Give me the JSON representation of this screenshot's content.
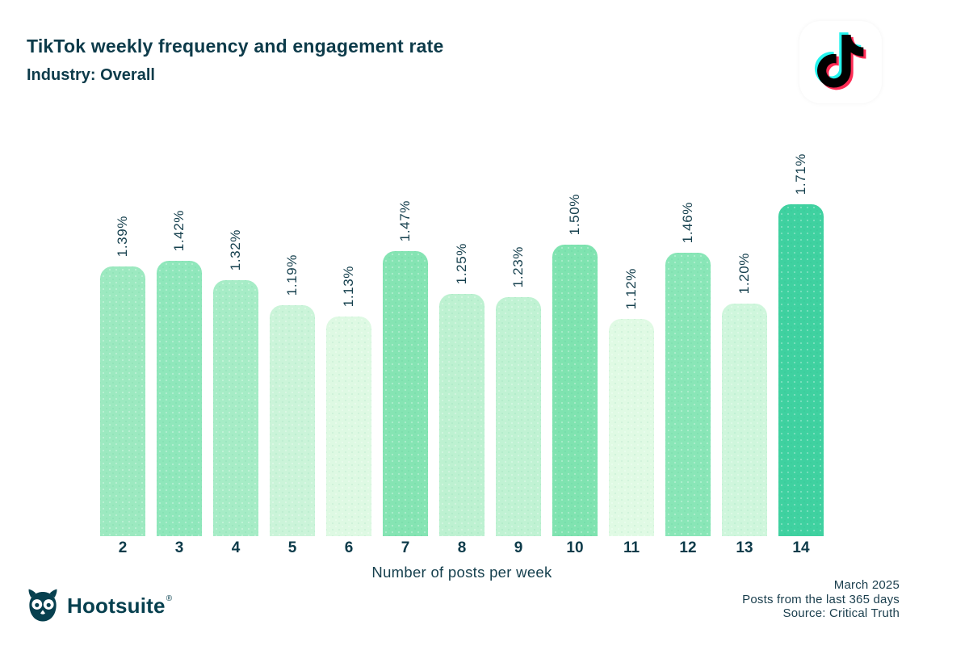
{
  "header": {
    "title": "TikTok weekly frequency and engagement rate",
    "subtitle": "Industry: Overall"
  },
  "chart_data": {
    "type": "bar",
    "categories": [
      "2",
      "3",
      "4",
      "5",
      "6",
      "7",
      "8",
      "9",
      "10",
      "11",
      "12",
      "13",
      "14"
    ],
    "values": [
      1.39,
      1.42,
      1.32,
      1.19,
      1.13,
      1.47,
      1.25,
      1.23,
      1.5,
      1.12,
      1.46,
      1.2,
      1.71
    ],
    "labels": [
      "1.39%",
      "1.42%",
      "1.32%",
      "1.19%",
      "1.13%",
      "1.47%",
      "1.25%",
      "1.23%",
      "1.50%",
      "1.12%",
      "1.46%",
      "1.20%",
      "1.71%"
    ],
    "bar_colors": [
      "#9ce9c0",
      "#8fe7bb",
      "#a6ecc6",
      "#cbf4d9",
      "#def9e3",
      "#85e4b3",
      "#bdf1d1",
      "#c0f2d3",
      "#7fe3b0",
      "#e0fae4",
      "#89e6b7",
      "#cff6dc",
      "#3fd1a0"
    ],
    "title": "TikTok weekly frequency and engagement rate",
    "xlabel": "Number of posts per week",
    "ylabel": "",
    "ylim": [
      0,
      1.71
    ],
    "grid": false,
    "legend": false,
    "value_label_rotation": -90
  },
  "footer": {
    "date": "March 2025",
    "range": "Posts from the last 365 days",
    "source": "Source: Critical Truth",
    "brand": "Hootsuite",
    "registered": "®"
  },
  "colors": {
    "text_dark": "#0d3b4a",
    "tiktok_cyan": "#25f4ee",
    "tiktok_red": "#fe2c55",
    "tiktok_black": "#010101",
    "hootsuite_teal": "#07404f"
  }
}
